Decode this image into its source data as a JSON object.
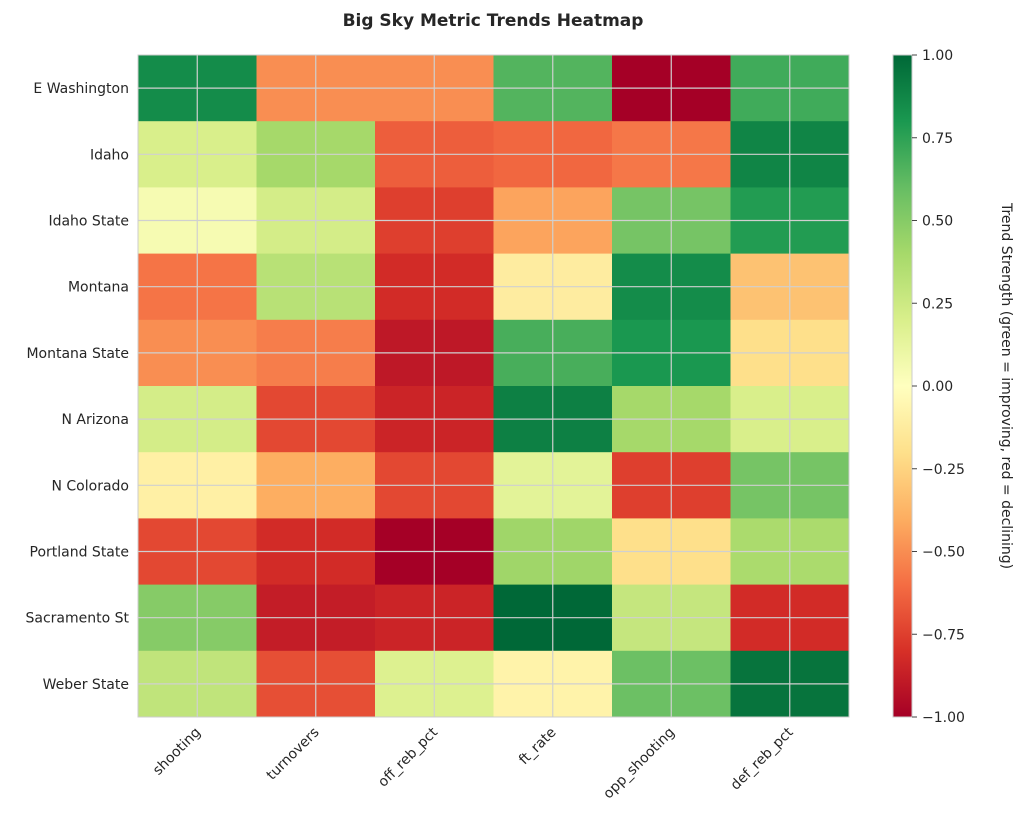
{
  "chart_data": {
    "type": "heatmap",
    "title": "Big Sky Metric Trends Heatmap",
    "xlabel": "",
    "ylabel": "",
    "columns": [
      "shooting",
      "turnovers",
      "off_reb_pct",
      "ft_rate",
      "opp_shooting",
      "def_reb_pct"
    ],
    "rows": [
      "E Washington",
      "Idaho",
      "Idaho State",
      "Montana",
      "Montana State",
      "N Arizona",
      "N Colorado",
      "Portland State",
      "Sacramento St",
      "Weber State"
    ],
    "values": [
      [
        0.85,
        -0.5,
        -0.5,
        0.65,
        -1.0,
        0.7
      ],
      [
        0.2,
        0.4,
        -0.65,
        -0.62,
        -0.57,
        0.88
      ],
      [
        0.05,
        0.22,
        -0.75,
        -0.43,
        0.55,
        0.78
      ],
      [
        -0.58,
        0.33,
        -0.82,
        -0.12,
        0.85,
        -0.32
      ],
      [
        -0.5,
        -0.55,
        -0.9,
        0.68,
        0.8,
        -0.2
      ],
      [
        0.22,
        -0.72,
        -0.85,
        0.9,
        0.4,
        0.2
      ],
      [
        -0.1,
        -0.4,
        -0.72,
        0.15,
        -0.75,
        0.55
      ],
      [
        -0.72,
        -0.82,
        -1.0,
        0.42,
        -0.2,
        0.38
      ],
      [
        0.5,
        -0.88,
        -0.85,
        1.0,
        0.28,
        -0.82
      ],
      [
        0.3,
        -0.7,
        0.18,
        -0.08,
        0.58,
        0.95
      ]
    ],
    "colormap": "RdYlGn",
    "colormap_stops": [
      "#a50026",
      "#d73027",
      "#f46d43",
      "#fdae61",
      "#fee08b",
      "#ffffbf",
      "#d9ef8b",
      "#a6d96a",
      "#66bd63",
      "#1a9850",
      "#006837"
    ],
    "vmin": -1.0,
    "vmax": 1.0,
    "colorbar": {
      "label": "Trend Strength (green = improving, red = declining)",
      "ticks": [
        "1.00",
        "0.75",
        "0.50",
        "0.25",
        "0.00",
        "−0.25",
        "−0.50",
        "−0.75",
        "−1.00"
      ],
      "tick_values": [
        1.0,
        0.75,
        0.5,
        0.25,
        0.0,
        -0.25,
        -0.5,
        -0.75,
        -1.0
      ]
    },
    "grid": true
  }
}
